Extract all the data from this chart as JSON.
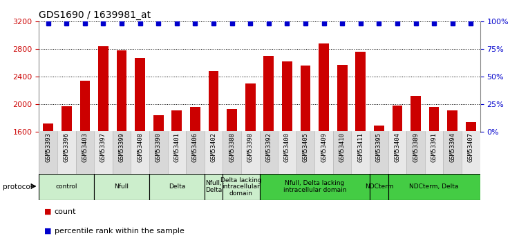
{
  "title": "GDS1690 / 1639981_at",
  "samples": [
    "GSM53393",
    "GSM53396",
    "GSM53403",
    "GSM53397",
    "GSM53399",
    "GSM53408",
    "GSM53390",
    "GSM53401",
    "GSM53406",
    "GSM53402",
    "GSM53388",
    "GSM53398",
    "GSM53392",
    "GSM53400",
    "GSM53405",
    "GSM53409",
    "GSM53410",
    "GSM53411",
    "GSM53395",
    "GSM53404",
    "GSM53389",
    "GSM53391",
    "GSM53394",
    "GSM53407"
  ],
  "counts": [
    1720,
    1970,
    2340,
    2840,
    2780,
    2670,
    1840,
    1910,
    1960,
    2480,
    1930,
    2300,
    2700,
    2620,
    2560,
    2880,
    2570,
    2760,
    1690,
    1980,
    2120,
    1960,
    1910,
    1740
  ],
  "percentile_ranks": [
    98,
    98,
    98,
    98,
    98,
    98,
    98,
    98,
    98,
    98,
    98,
    98,
    98,
    98,
    98,
    98,
    98,
    98,
    98,
    98,
    98,
    98,
    98,
    98
  ],
  "groups": [
    {
      "label": "control",
      "start": 0,
      "end": 2,
      "color": "#cceecc"
    },
    {
      "label": "Nfull",
      "start": 3,
      "end": 5,
      "color": "#cceecc"
    },
    {
      "label": "Delta",
      "start": 6,
      "end": 8,
      "color": "#cceecc"
    },
    {
      "label": "Nfull,\nDelta",
      "start": 9,
      "end": 9,
      "color": "#cceecc"
    },
    {
      "label": "Delta lacking\nintracellular\ndomain",
      "start": 10,
      "end": 11,
      "color": "#cceecc"
    },
    {
      "label": "Nfull, Delta lacking\nintracellular domain",
      "start": 12,
      "end": 17,
      "color": "#44cc44"
    },
    {
      "label": "NDCterm",
      "start": 18,
      "end": 18,
      "color": "#44cc44"
    },
    {
      "label": "NDCterm, Delta",
      "start": 19,
      "end": 23,
      "color": "#44cc44"
    }
  ],
  "bar_color": "#cc0000",
  "dot_color": "#0000cc",
  "ylim_left": [
    1600,
    3200
  ],
  "ylim_right": [
    0,
    100
  ],
  "yticks_left": [
    1600,
    2000,
    2400,
    2800,
    3200
  ],
  "yticks_right": [
    0,
    25,
    50,
    75,
    100
  ],
  "bg_color": "#ffffff",
  "plot_bg": "#ffffff"
}
